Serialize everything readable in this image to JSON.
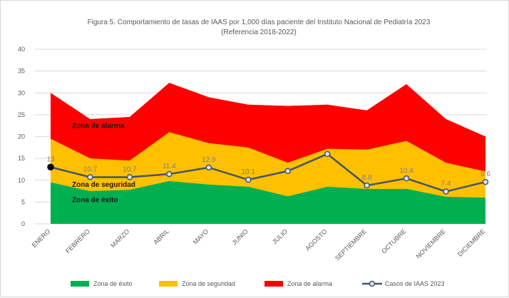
{
  "chart_data": {
    "type": "area",
    "title": "Figura 5. Comportamiento de tasas de IAAS por 1,000 días paciente del Instituto Nacional de Pediatría 2023",
    "subtitle": "(Referencia 2018-2022)",
    "categories": [
      "ENERO",
      "FEBRERO",
      "MARZO",
      "ABRIL",
      "MAYO",
      "JUNIO",
      "JULIO",
      "AGOSTO",
      "SEPTIEMBRE",
      "OCTUBRE",
      "NOVIEMBRE",
      "DICIEMBRE"
    ],
    "ylim": [
      0,
      40
    ],
    "yticks": [
      0,
      5,
      10,
      15,
      20,
      25,
      30,
      35,
      40
    ],
    "grid": true,
    "legend_position": "bottom",
    "series": [
      {
        "name": "Zona de éxito",
        "kind": "area",
        "color": "#00b050",
        "values": [
          9.5,
          7.5,
          7.8,
          9.8,
          9.0,
          8.5,
          6.3,
          8.5,
          8.0,
          8.0,
          6.2,
          6.0
        ]
      },
      {
        "name": "Zona de seguridad",
        "kind": "area",
        "color": "#ffc000",
        "values": [
          19.5,
          15.0,
          14.5,
          21.0,
          18.5,
          17.5,
          14.0,
          17.2,
          17.0,
          19.0,
          14.0,
          12.0
        ]
      },
      {
        "name": "Zona de alarma",
        "kind": "area",
        "color": "#ff0000",
        "values": [
          30.0,
          24.0,
          24.5,
          32.3,
          29.0,
          27.3,
          27.0,
          27.3,
          26.0,
          32.0,
          24.0,
          20.0
        ]
      },
      {
        "name": "Casos de IAAS 2023",
        "kind": "line",
        "color": "#44546a",
        "values": [
          13.0,
          10.7,
          10.7,
          11.4,
          12.9,
          10.1,
          12.1,
          16.0,
          8.8,
          10.4,
          7.4,
          9.6
        ],
        "labels": [
          "13",
          "10.7",
          "10.7",
          "11.4",
          "12.9",
          "10.1",
          "",
          "",
          "8.8",
          "10.4",
          "7.4",
          "9.6"
        ]
      }
    ],
    "annotations": [
      {
        "text": "Zona de alarma",
        "x": "ENERO",
        "y": 22.0
      },
      {
        "text": "Zona de seguridad",
        "x": "ENERO",
        "y": 8.5
      },
      {
        "text": "Zona de éxito",
        "x": "ENERO",
        "y": 5.0
      }
    ]
  }
}
